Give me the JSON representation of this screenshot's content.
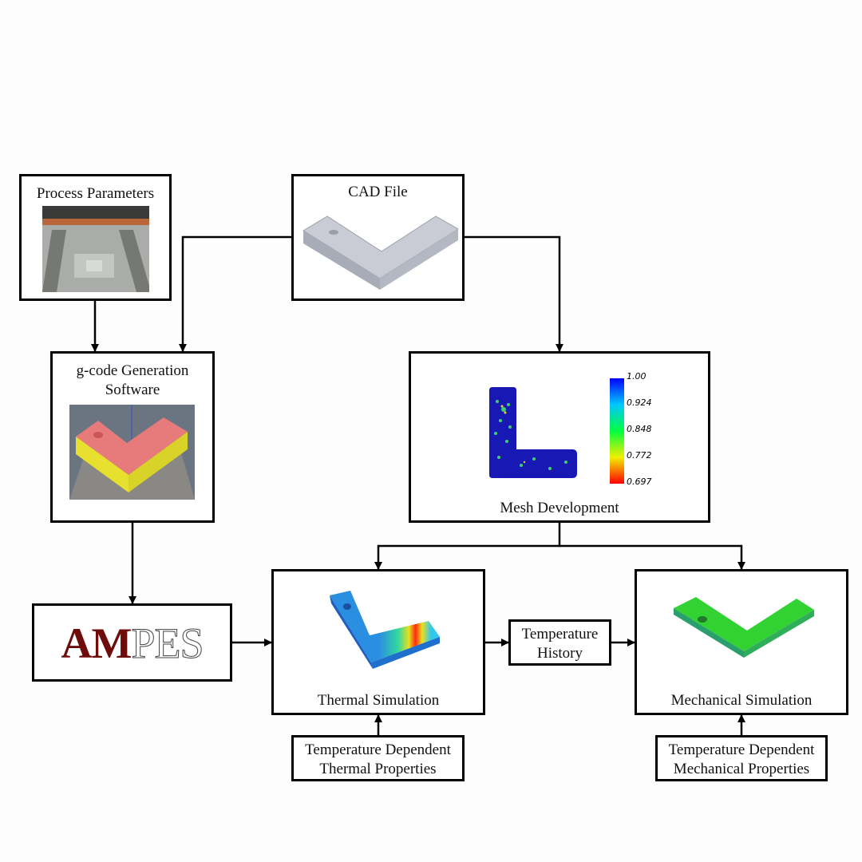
{
  "nodes": {
    "process_parameters": "Process Parameters",
    "cad_file": "CAD File",
    "gcode": "g-code Generation\nSoftware",
    "mesh": "Mesh Development",
    "ampes_am": "AM",
    "ampes_pes": "PES",
    "thermal": "Thermal Simulation",
    "temp_history": "Temperature\nHistory",
    "mechanical": "Mechanical Simulation",
    "thermal_props": "Temperature Dependent\nThermal Properties",
    "mech_props": "Temperature Dependent\nMechanical Properties"
  },
  "colorbar": {
    "ticks": [
      "1.00",
      "0.924",
      "0.848",
      "0.772",
      "0.697"
    ]
  },
  "colors": {
    "ampes_am": "#6e0b0b",
    "gcode_top": "#e77b7b",
    "gcode_side": "#e7e02e",
    "thermal_base": "#2a8fe0",
    "mechanical_base": "#33d233"
  }
}
